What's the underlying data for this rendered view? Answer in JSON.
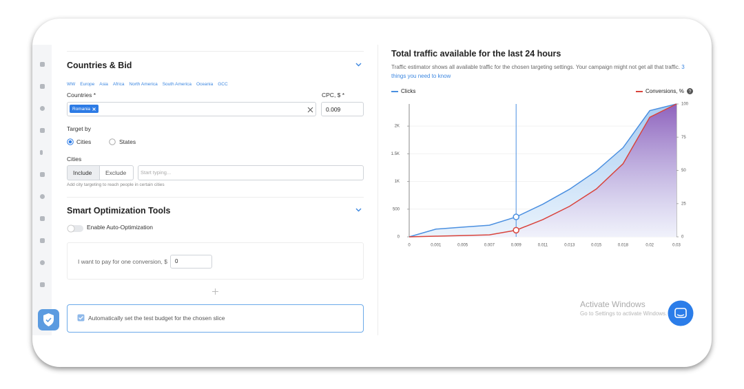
{
  "countries_bid": {
    "title": "Countries & Bid",
    "regions": [
      "WW",
      "Europe",
      "Asia",
      "Africa",
      "North America",
      "South America",
      "Oceania",
      "GCC"
    ],
    "countries_label": "Countries *",
    "cpc_label": "CPC, $ *",
    "selected_country": "Romania",
    "cpc_value": "0.009",
    "target_by_label": "Target by",
    "target_options": [
      "Cities",
      "States"
    ],
    "cities_label": "Cities",
    "city_modes": [
      "Include",
      "Exclude"
    ],
    "city_placeholder": "Start typing...",
    "city_hint": "Add city targeting to reach people in certain cities"
  },
  "smart_optimization": {
    "title": "Smart Optimization Tools",
    "auto_optimization_label": "Enable Auto-Optimization",
    "conversion_price_label": "I want to pay for one conversion, $",
    "conversion_price_value": "0",
    "test_budget_label": "Automatically set the test budget for the chosen slice"
  },
  "chart_data": {
    "type": "line",
    "title": "Total traffic available for the last 24 hours",
    "subtitle": "Traffic estimator shows all available traffic for the chosen targeting settings. Your campaign might not get all that traffic.",
    "subtitle_link": "3 things you need to know",
    "categories": [
      "0",
      "0.001",
      "0.005",
      "0.007",
      "0.009",
      "0.011",
      "0.013",
      "0.015",
      "0.018",
      "0.02",
      "0.03"
    ],
    "series": [
      {
        "name": "Clicks",
        "color": "#4a8fe0",
        "values": [
          0,
          140,
          175,
          210,
          360,
          590,
          860,
          1190,
          1610,
          2280,
          2400
        ]
      },
      {
        "name": "Conversions, %",
        "color": "#d9433b",
        "axis": "y2",
        "values": [
          0,
          0.5,
          1,
          1.5,
          5,
          13,
          23,
          36,
          55,
          90,
          100
        ]
      }
    ],
    "ylim": [
      0,
      2400
    ],
    "yticks": [
      0,
      500,
      {
        "value": 1000,
        "label": "1K"
      },
      {
        "value": 1500,
        "label": "1.5K"
      },
      {
        "value": 2000,
        "label": "2K"
      }
    ],
    "y2lim": [
      0,
      100
    ],
    "y2ticks": [
      0,
      25,
      50,
      75,
      100
    ],
    "grid": true,
    "cursor_index": 4
  },
  "watermark": {
    "title": "Activate Windows",
    "subtitle": "Go to Settings to activate Windows."
  }
}
